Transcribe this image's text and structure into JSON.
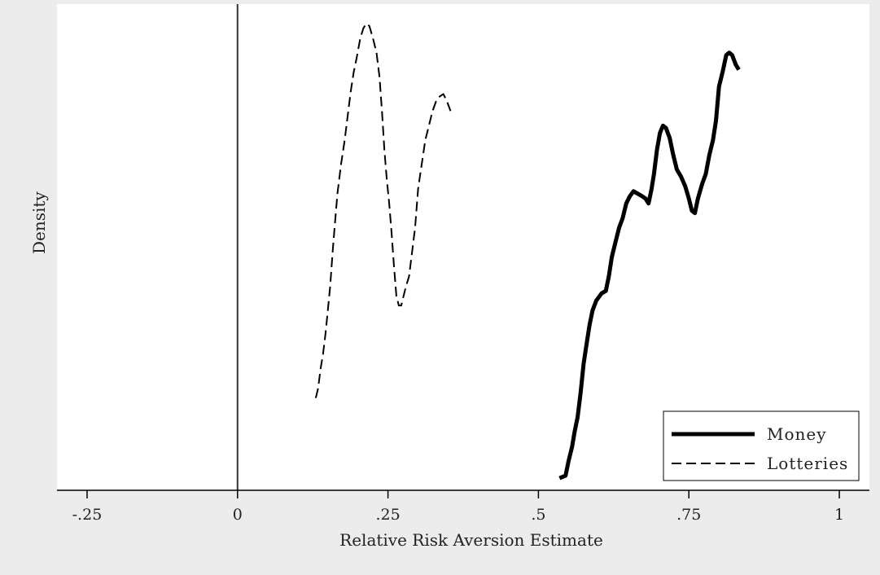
{
  "chart_data": {
    "type": "line",
    "title": "",
    "xlabel": "Relative Risk Aversion Estimate",
    "ylabel": "Density",
    "xlim": [
      -0.3,
      1.05
    ],
    "ylim": [
      0,
      1.0
    ],
    "x_ticks": [
      {
        "value": -0.25,
        "label": "-.25"
      },
      {
        "value": 0,
        "label": "0"
      },
      {
        "value": 0.25,
        "label": ".25"
      },
      {
        "value": 0.5,
        "label": ".5"
      },
      {
        "value": 0.75,
        "label": ".75"
      },
      {
        "value": 1,
        "label": "1"
      }
    ],
    "reference_line_x": 0,
    "legend_position": "bottom-right",
    "grid": false,
    "series": [
      {
        "name": "Money",
        "style": "solid",
        "color": "#000000",
        "points": [
          [
            0.535,
            0.025
          ],
          [
            0.545,
            0.03
          ],
          [
            0.55,
            0.06
          ],
          [
            0.556,
            0.09
          ],
          [
            0.56,
            0.12
          ],
          [
            0.565,
            0.15
          ],
          [
            0.57,
            0.2
          ],
          [
            0.575,
            0.26
          ],
          [
            0.58,
            0.3
          ],
          [
            0.585,
            0.34
          ],
          [
            0.59,
            0.37
          ],
          [
            0.596,
            0.39
          ],
          [
            0.605,
            0.405
          ],
          [
            0.612,
            0.41
          ],
          [
            0.617,
            0.44
          ],
          [
            0.622,
            0.48
          ],
          [
            0.628,
            0.51
          ],
          [
            0.634,
            0.54
          ],
          [
            0.64,
            0.56
          ],
          [
            0.646,
            0.59
          ],
          [
            0.652,
            0.605
          ],
          [
            0.658,
            0.615
          ],
          [
            0.665,
            0.61
          ],
          [
            0.672,
            0.605
          ],
          [
            0.678,
            0.6
          ],
          [
            0.683,
            0.59
          ],
          [
            0.688,
            0.62
          ],
          [
            0.692,
            0.65
          ],
          [
            0.697,
            0.7
          ],
          [
            0.702,
            0.735
          ],
          [
            0.707,
            0.75
          ],
          [
            0.712,
            0.745
          ],
          [
            0.718,
            0.725
          ],
          [
            0.724,
            0.69
          ],
          [
            0.73,
            0.66
          ],
          [
            0.737,
            0.645
          ],
          [
            0.744,
            0.625
          ],
          [
            0.75,
            0.6
          ],
          [
            0.755,
            0.575
          ],
          [
            0.76,
            0.57
          ],
          [
            0.765,
            0.6
          ],
          [
            0.772,
            0.63
          ],
          [
            0.778,
            0.65
          ],
          [
            0.784,
            0.69
          ],
          [
            0.79,
            0.72
          ],
          [
            0.795,
            0.76
          ],
          [
            0.8,
            0.83
          ],
          [
            0.806,
            0.86
          ],
          [
            0.812,
            0.895
          ],
          [
            0.817,
            0.9
          ],
          [
            0.822,
            0.895
          ],
          [
            0.828,
            0.875
          ],
          [
            0.833,
            0.865
          ]
        ]
      },
      {
        "name": "Lotteries",
        "style": "dashed",
        "color": "#000000",
        "points": [
          [
            0.13,
            0.19
          ],
          [
            0.134,
            0.21
          ],
          [
            0.138,
            0.25
          ],
          [
            0.142,
            0.28
          ],
          [
            0.146,
            0.32
          ],
          [
            0.15,
            0.37
          ],
          [
            0.154,
            0.42
          ],
          [
            0.158,
            0.49
          ],
          [
            0.162,
            0.55
          ],
          [
            0.166,
            0.61
          ],
          [
            0.172,
            0.67
          ],
          [
            0.178,
            0.72
          ],
          [
            0.183,
            0.77
          ],
          [
            0.188,
            0.82
          ],
          [
            0.193,
            0.86
          ],
          [
            0.198,
            0.89
          ],
          [
            0.204,
            0.93
          ],
          [
            0.209,
            0.95
          ],
          [
            0.214,
            0.96
          ],
          [
            0.219,
            0.955
          ],
          [
            0.225,
            0.93
          ],
          [
            0.231,
            0.9
          ],
          [
            0.236,
            0.85
          ],
          [
            0.24,
            0.78
          ],
          [
            0.244,
            0.7
          ],
          [
            0.248,
            0.64
          ],
          [
            0.252,
            0.59
          ],
          [
            0.256,
            0.53
          ],
          [
            0.26,
            0.46
          ],
          [
            0.264,
            0.4
          ],
          [
            0.268,
            0.38
          ],
          [
            0.272,
            0.38
          ],
          [
            0.276,
            0.4
          ],
          [
            0.28,
            0.42
          ],
          [
            0.285,
            0.44
          ],
          [
            0.29,
            0.49
          ],
          [
            0.295,
            0.54
          ],
          [
            0.3,
            0.62
          ],
          [
            0.306,
            0.67
          ],
          [
            0.312,
            0.72
          ],
          [
            0.318,
            0.75
          ],
          [
            0.324,
            0.78
          ],
          [
            0.33,
            0.8
          ],
          [
            0.336,
            0.81
          ],
          [
            0.342,
            0.815
          ],
          [
            0.348,
            0.8
          ],
          [
            0.354,
            0.78
          ]
        ]
      }
    ]
  }
}
